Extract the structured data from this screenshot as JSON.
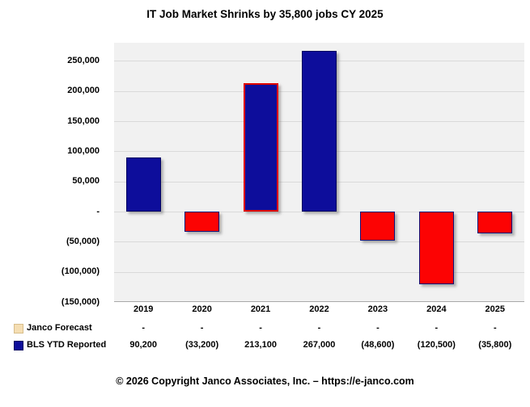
{
  "title": "IT Job Market Shrinks by 35,800 jobs CY 2025",
  "footer": "© 2026 Copyright Janco Associates, Inc. – https://e-janco.com",
  "colors": {
    "navy": "#0D0D9B",
    "navy_border": "#03035F",
    "red": "#FC0303",
    "red_accent_border": "#DE0000",
    "negative_bar_border": "#101078",
    "plot_bg": "#F1F1F1",
    "gridline": "#DADADA",
    "axis_line": "#A9A9A9",
    "janco_swatch": "#F5DEB3",
    "janco_swatch_border": "#D8BE8C",
    "text": "#000000",
    "background": "#FFFFFF"
  },
  "chart_data": {
    "type": "bar",
    "title": "IT Job Market Shrinks by 35,800 jobs CY 2025",
    "categories": [
      "2019",
      "2020",
      "2021",
      "2022",
      "2023",
      "2024",
      "2025"
    ],
    "series": [
      {
        "name": "Janco Forecast",
        "values": [
          null,
          null,
          null,
          null,
          null,
          null,
          null
        ],
        "display": [
          "-",
          "-",
          "-",
          "-",
          "-",
          "-",
          "-"
        ],
        "swatch_color": "#F5DEB3"
      },
      {
        "name": "BLS YTD Reported",
        "values": [
          90200,
          -33200,
          213100,
          267000,
          -48600,
          -120500,
          -35800
        ],
        "display": [
          "90,200",
          "(33,200)",
          "213,100",
          "267,000",
          "(48,600)",
          "(120,500)",
          "(35,800)"
        ],
        "swatch_color": "#0D0D9B"
      }
    ],
    "bars": [
      {
        "year": "2019",
        "value": 90200,
        "label": "90,200",
        "fill": "#0D0D9B",
        "border": "#03035F",
        "border_width": 1
      },
      {
        "year": "2020",
        "value": -33200,
        "label": "(33,200)",
        "fill": "#FC0303",
        "border": "#101078",
        "border_width": 1
      },
      {
        "year": "2021",
        "value": 213100,
        "label": "213,100",
        "fill": "#0D0D9B",
        "border": "#DE0000",
        "border_width": 2
      },
      {
        "year": "2022",
        "value": 267000,
        "label": "267,000",
        "fill": "#0D0D9B",
        "border": "#03035F",
        "border_width": 1
      },
      {
        "year": "2023",
        "value": -48600,
        "label": "(48,600)",
        "fill": "#FC0303",
        "border": "#101078",
        "border_width": 1
      },
      {
        "year": "2024",
        "value": -120500,
        "label": "(120,500)",
        "fill": "#FC0303",
        "border": "#101078",
        "border_width": 1
      },
      {
        "year": "2025",
        "value": -35800,
        "label": "(35,800)",
        "fill": "#FC0303",
        "border": "#101078",
        "border_width": 1
      }
    ],
    "y_axis": {
      "ylim": [
        -150000,
        280000
      ],
      "ticks": [
        {
          "label": "250,000",
          "value": 250000
        },
        {
          "label": "200,000",
          "value": 200000
        },
        {
          "label": "150,000",
          "value": 150000
        },
        {
          "label": "100,000",
          "value": 100000
        },
        {
          "label": "50,000",
          "value": 50000
        },
        {
          "label": "-",
          "value": 0
        },
        {
          "label": "(50,000)",
          "value": -50000
        },
        {
          "label": "(100,000)",
          "value": -100000
        },
        {
          "label": "(150,000)",
          "value": -150000
        }
      ],
      "gridline_values": [
        250000,
        200000,
        150000,
        100000,
        50000,
        0,
        -50000,
        -100000
      ]
    },
    "grid": true,
    "legend_position": "bottom-left-table",
    "xlabel": "",
    "ylabel": ""
  }
}
